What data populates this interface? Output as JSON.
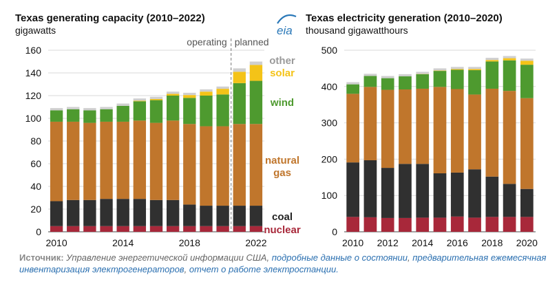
{
  "logo_text": "eia",
  "colors": {
    "nuclear": "#a8283a",
    "coal": "#303030",
    "natural_gas": "#c0762c",
    "wind": "#4e9a2f",
    "solar": "#f4c318",
    "other": "#cfcfcf",
    "nuclear_label": "#a8283a",
    "coal_label": "#222222",
    "gas_label": "#c0762c",
    "wind_label": "#4e9a2f",
    "solar_label": "#f4c318",
    "other_label": "#9a9a9a",
    "grid": "#d9d9d9",
    "divider": "#777777"
  },
  "chart_data": [
    {
      "type": "bar",
      "stacked": true,
      "title": "Texas generating capacity (2010–2022)",
      "ylabel": "gigawatts",
      "ylim": [
        0,
        160
      ],
      "yticks": [
        0,
        20,
        40,
        60,
        80,
        100,
        120,
        140,
        160
      ],
      "x": [
        2010,
        2011,
        2012,
        2013,
        2014,
        2015,
        2016,
        2017,
        2018,
        2019,
        2020,
        2021,
        2022
      ],
      "xtick_labels": [
        "2010",
        "2014",
        "2018",
        "2022"
      ],
      "xtick_years": [
        2010,
        2014,
        2018,
        2022
      ],
      "grid": true,
      "annotations": {
        "operating": "operating",
        "planned": "planned",
        "planned_from": 2021
      },
      "series": [
        {
          "name": "nuclear",
          "values": [
            5,
            5,
            5,
            5,
            5,
            5,
            5,
            5,
            5,
            5,
            5,
            5,
            5
          ]
        },
        {
          "name": "coal",
          "values": [
            22,
            23,
            23,
            24,
            24,
            24,
            23,
            23,
            19,
            18,
            18,
            18,
            18
          ]
        },
        {
          "name": "natural gas",
          "values": [
            70,
            69,
            68,
            68,
            68,
            69,
            68,
            70,
            71,
            70,
            70,
            72,
            72
          ]
        },
        {
          "name": "wind",
          "values": [
            10,
            11,
            11,
            11,
            14,
            17,
            20,
            22,
            23,
            27,
            28,
            36,
            38
          ]
        },
        {
          "name": "solar",
          "values": [
            0,
            0,
            0,
            0,
            0,
            0.5,
            1,
            1.5,
            2.5,
            3.5,
            5,
            10,
            14
          ]
        },
        {
          "name": "other",
          "values": [
            2,
            2,
            2,
            2,
            2,
            2,
            2,
            2,
            2,
            2,
            2,
            3,
            3
          ]
        }
      ],
      "series_labels": [
        {
          "series": "other",
          "text": "other"
        },
        {
          "series": "solar",
          "text": "solar"
        },
        {
          "series": "wind",
          "text": "wind"
        },
        {
          "series": "natural gas",
          "text": "natural"
        },
        {
          "series": "natural gas",
          "text": "gas"
        },
        {
          "series": "coal",
          "text": "coal"
        },
        {
          "series": "nuclear",
          "text": "nuclear"
        }
      ]
    },
    {
      "type": "bar",
      "stacked": true,
      "title": "Texas electricity generation (2010–2020)",
      "ylabel": "thousand gigawatthours",
      "ylim": [
        0,
        500
      ],
      "yticks": [
        0,
        100,
        200,
        300,
        400,
        500
      ],
      "x": [
        2010,
        2011,
        2012,
        2013,
        2014,
        2015,
        2016,
        2017,
        2018,
        2019,
        2020
      ],
      "xtick_labels": [
        "2010",
        "2012",
        "2014",
        "2016",
        "2018",
        "2020"
      ],
      "xtick_years": [
        2010,
        2012,
        2014,
        2016,
        2018,
        2020
      ],
      "grid": true,
      "series": [
        {
          "name": "nuclear",
          "values": [
            41,
            40,
            38,
            38,
            39,
            39,
            42,
            39,
            41,
            41,
            41
          ]
        },
        {
          "name": "coal",
          "values": [
            150,
            157,
            138,
            149,
            148,
            122,
            121,
            133,
            111,
            91,
            77
          ]
        },
        {
          "name": "natural gas",
          "values": [
            189,
            202,
            215,
            205,
            207,
            238,
            230,
            206,
            242,
            256,
            250
          ]
        },
        {
          "name": "wind",
          "values": [
            26,
            30,
            32,
            36,
            40,
            44,
            53,
            67,
            75,
            84,
            92
          ]
        },
        {
          "name": "solar",
          "values": [
            0,
            0,
            0,
            0,
            0.5,
            1,
            2,
            3,
            4,
            6,
            11
          ]
        },
        {
          "name": "other",
          "values": [
            6,
            6,
            6,
            6,
            6,
            6,
            6,
            6,
            6,
            6,
            6
          ]
        }
      ]
    }
  ],
  "source": {
    "label": "Источник:",
    "text": "Управление энергетической информации США,",
    "link1": "подробные данные о состоянии",
    "sep1": ",",
    "link2": "предварительная ежемесячная инвентаризация электрогенераторов",
    "sep2": ",",
    "link3": "отчет о работе электростанции."
  }
}
